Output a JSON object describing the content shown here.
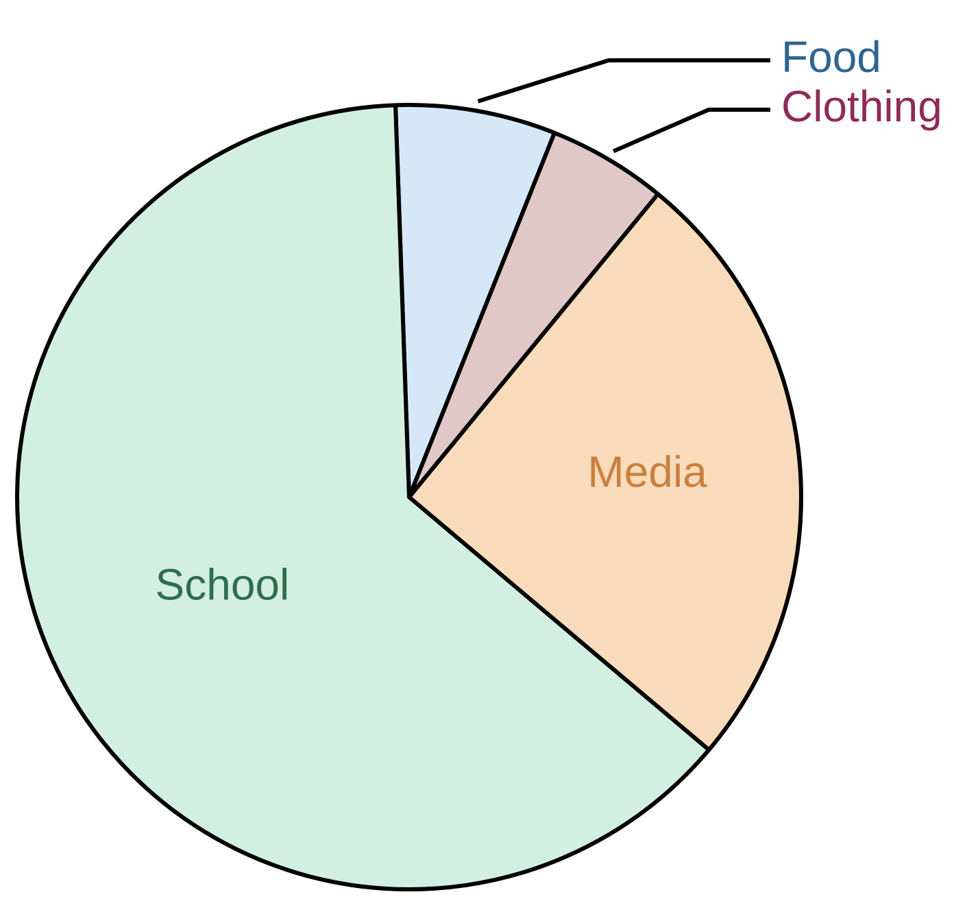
{
  "chart_data": {
    "type": "pie",
    "title": "",
    "start_angle_deg": -92,
    "direction": "clockwise",
    "slices": [
      {
        "label": "Food",
        "value": 6.6,
        "color": "#d6e7f8",
        "label_color": "#2f6591",
        "label_style": "callout"
      },
      {
        "label": "Clothing",
        "value": 4.9,
        "color": "#dfc8c7",
        "label_color": "#8e2a58",
        "label_style": "callout"
      },
      {
        "label": "Media",
        "value": 25.2,
        "color": "#f8dbba",
        "label_color": "#c9803f",
        "label_style": "inside"
      },
      {
        "label": "School",
        "value": 63.3,
        "color": "#d3efe2",
        "label_color": "#2e6d52",
        "label_style": "inside"
      }
    ]
  }
}
